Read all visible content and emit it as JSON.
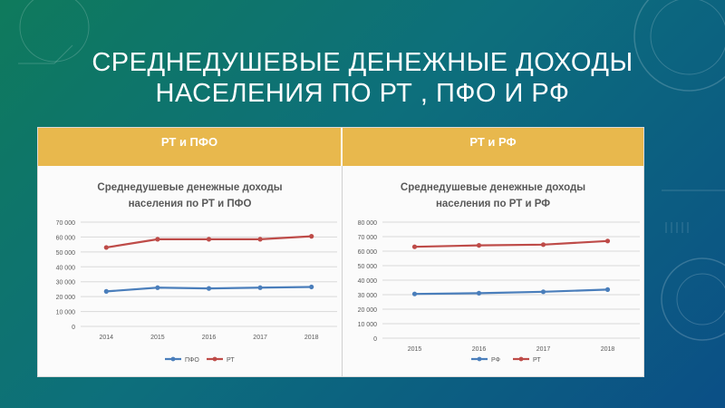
{
  "slide": {
    "title_line1": "СРЕДНЕДУШЕВЫЕ ДЕНЕЖНЫЕ ДОХОДЫ",
    "title_line2": "НАСЕЛЕНИЯ ПО РТ , ПФО И РФ"
  },
  "table": {
    "header_left": "РТ и ПФО",
    "header_right": "РТ и РФ"
  },
  "colors": {
    "header": "#e8b84d",
    "series_blue": "#4a7ebb",
    "series_red": "#be4b48"
  },
  "chart_data": [
    {
      "type": "line",
      "title_line1": "Среднедушевые денежные доходы",
      "title_line2": "населения по РТ и ПФО",
      "categories": [
        "2014",
        "2015",
        "2016",
        "2017",
        "2018"
      ],
      "ylim": [
        0,
        70000
      ],
      "yticks": [
        "0",
        "10 000",
        "20 000",
        "30 000",
        "40 000",
        "50 000",
        "60 000",
        "70 000"
      ],
      "series": [
        {
          "name": "ПФО",
          "color": "#4a7ebb",
          "values": [
            23500,
            26000,
            25500,
            26000,
            26500
          ]
        },
        {
          "name": "РТ",
          "color": "#be4b48",
          "values": [
            53000,
            58500,
            58500,
            58500,
            60500
          ]
        }
      ],
      "legend": "bottom",
      "grid": true
    },
    {
      "type": "line",
      "title_line1": "Среднедушевые денежные доходы",
      "title_line2": "населения по РТ и РФ",
      "categories": [
        "2015",
        "2016",
        "2017",
        "2018"
      ],
      "ylim": [
        0,
        80000
      ],
      "yticks": [
        "0",
        "10 000",
        "20 000",
        "30 000",
        "40 000",
        "50 000",
        "60 000",
        "70 000",
        "80 000"
      ],
      "series": [
        {
          "name": "РФ",
          "color": "#4a7ebb",
          "values": [
            30500,
            31000,
            32000,
            33500
          ]
        },
        {
          "name": "РТ",
          "color": "#be4b48",
          "values": [
            63000,
            64000,
            64500,
            67000
          ]
        }
      ],
      "legend": "bottom",
      "grid": true
    }
  ]
}
